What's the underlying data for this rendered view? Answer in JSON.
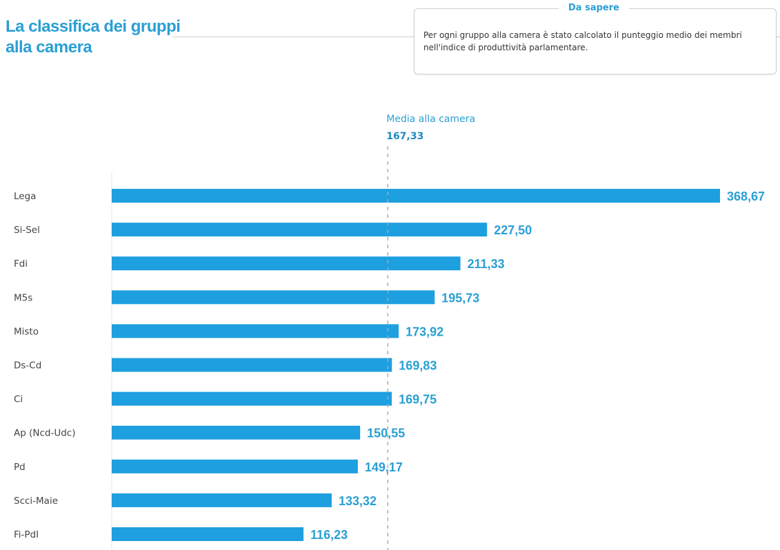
{
  "header": {
    "title_line1": "La classifica dei gruppi",
    "title_line2": "alla camera"
  },
  "info_box": {
    "title": "Da sapere",
    "text": "Per ogni gruppo alla camera è stato calcolato il punteggio medio dei membri nell'indice di produttività parlamentare."
  },
  "colors": {
    "bar": "#1e9fdf",
    "accent": "#2a9fd4",
    "mean_line": "#aaaaaa",
    "axis": "#e6e6e6"
  },
  "chart_data": {
    "type": "bar",
    "orientation": "horizontal",
    "title": "La classifica dei gruppi alla camera",
    "xlabel": "",
    "ylabel": "",
    "categories": [
      "Lega",
      "Si-Sel",
      "Fdi",
      "M5s",
      "Misto",
      "Ds-Cd",
      "Ci",
      "Ap (Ncd-Udc)",
      "Pd",
      "Scci-Maie",
      "Fi-PdI"
    ],
    "values": [
      368.67,
      227.5,
      211.33,
      195.73,
      173.92,
      169.83,
      169.75,
      150.55,
      149.17,
      133.32,
      116.23
    ],
    "value_labels": [
      "368,67",
      "227,50",
      "211,33",
      "195,73",
      "173,92",
      "169,83",
      "169,75",
      "150,55",
      "149,17",
      "133,32",
      "116,23"
    ],
    "xlim": [
      0,
      368.67
    ],
    "grid": false,
    "reference_line": {
      "label": "Media alla camera",
      "value": 167.33,
      "value_label": "167,33"
    }
  }
}
